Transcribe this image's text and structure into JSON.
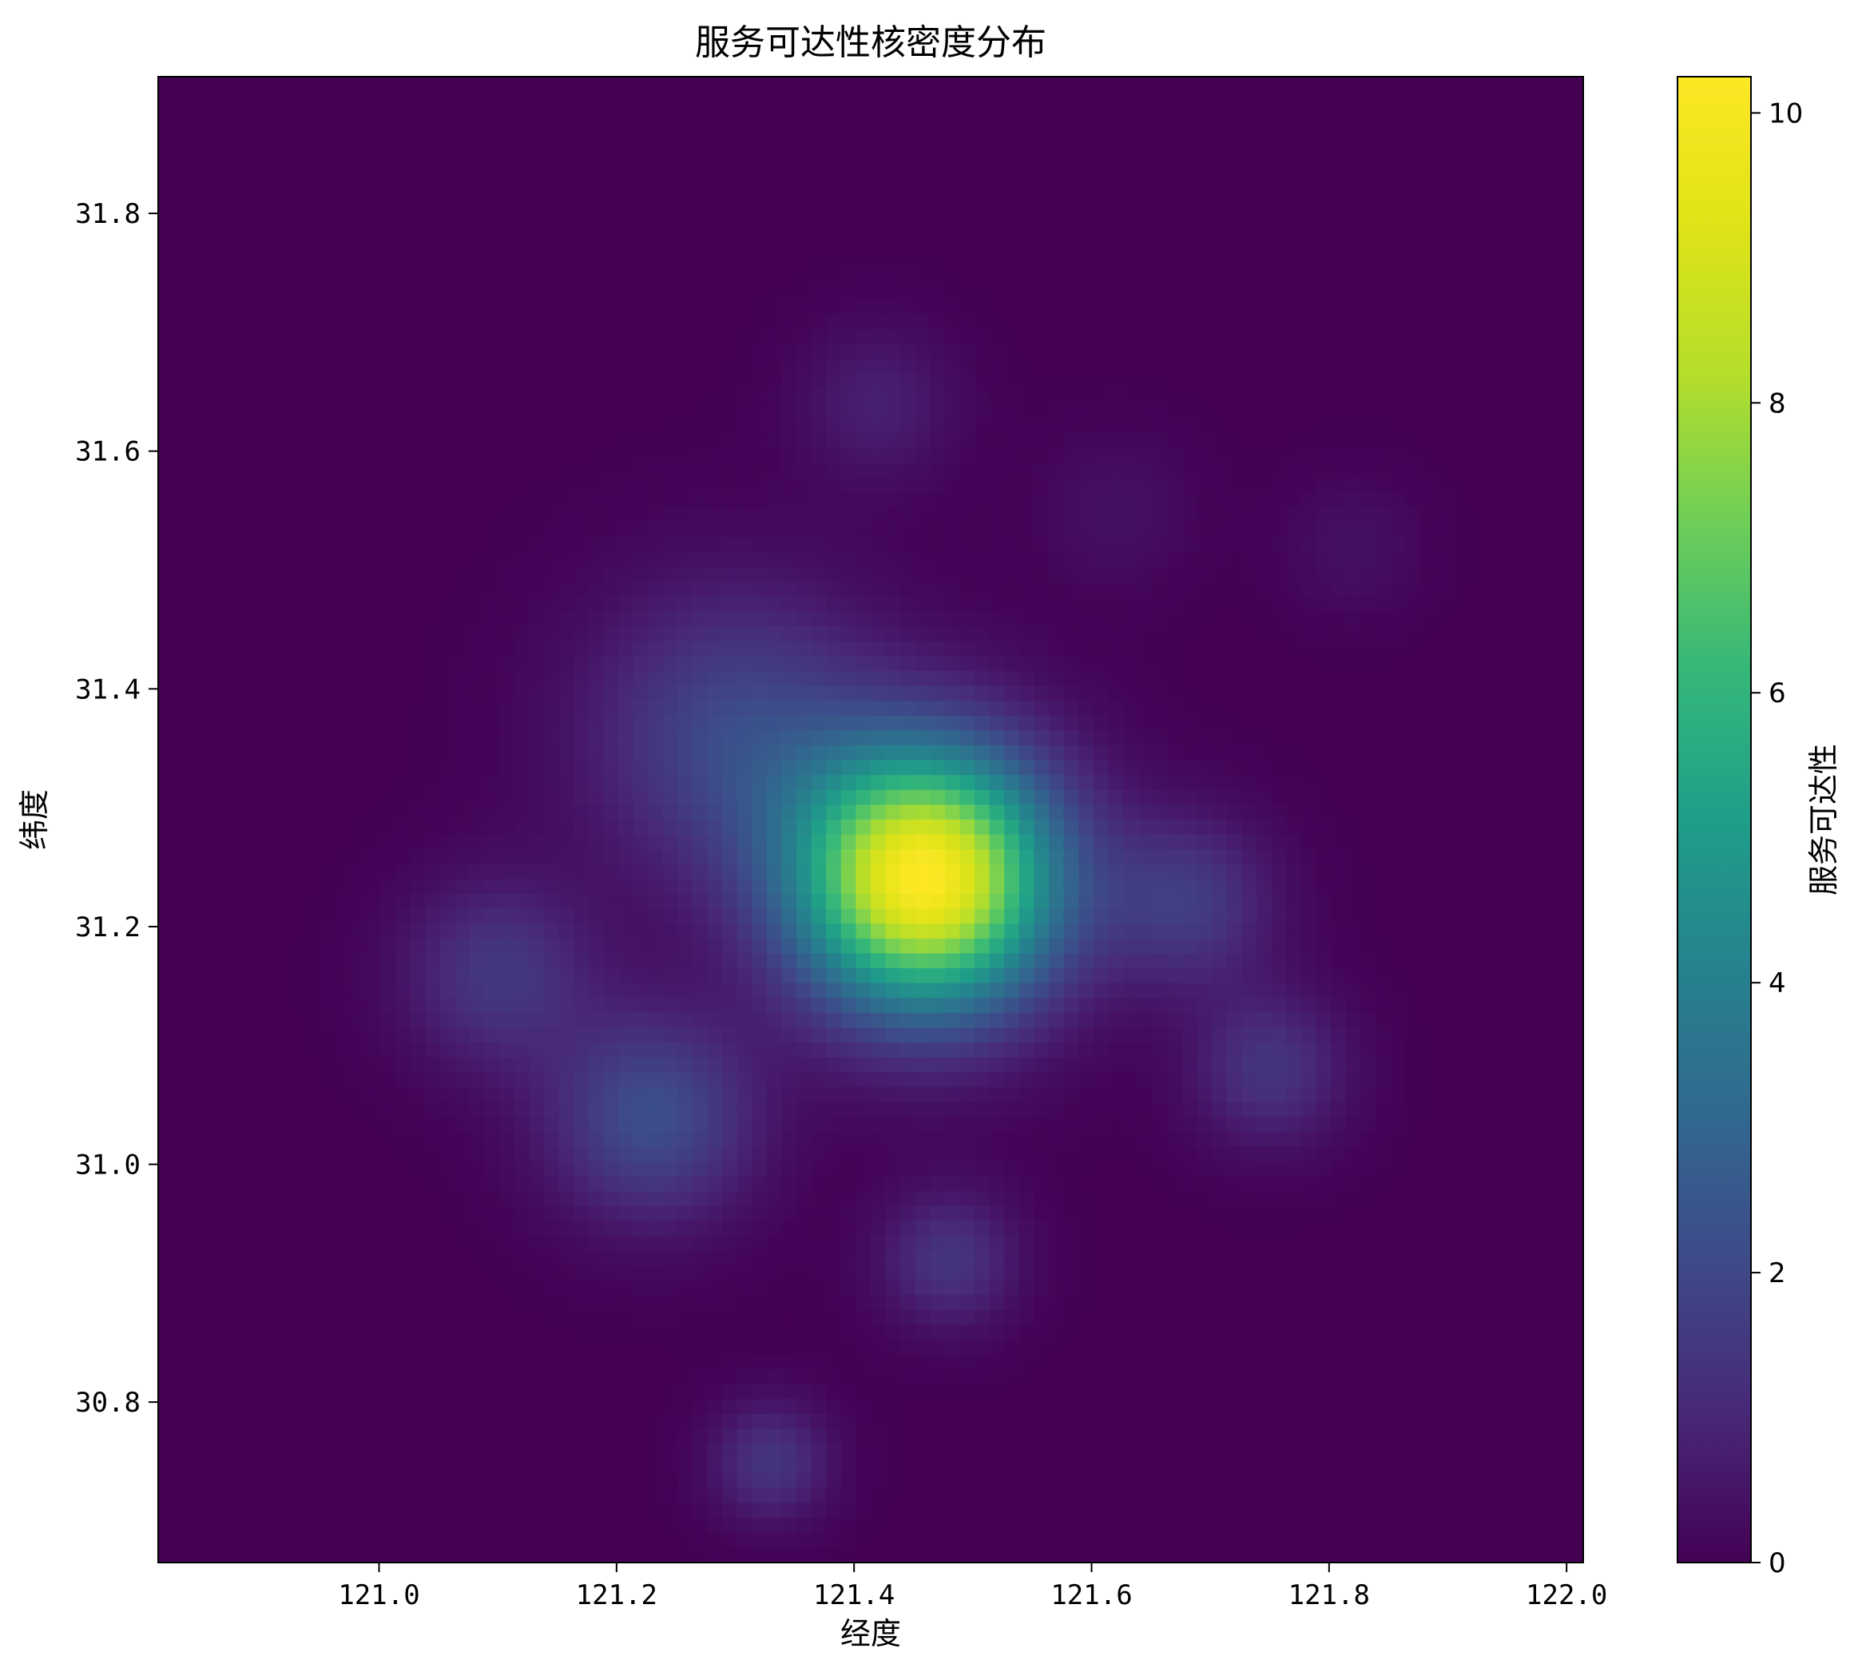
{
  "chart_data": {
    "type": "heatmap",
    "title": "服务可达性核密度分布",
    "xlabel": "经度",
    "ylabel": "纬度",
    "xlim": [
      120.814,
      122.014
    ],
    "ylim": [
      30.665,
      31.915
    ],
    "x_ticks": [
      121.0,
      121.2,
      121.4,
      121.6,
      121.8,
      122.0
    ],
    "y_ticks": [
      30.8,
      31.0,
      31.2,
      31.4,
      31.6,
      31.8
    ],
    "colormap": "viridis",
    "colorbar": {
      "label": "服务可达性",
      "range": [
        0,
        10.25
      ],
      "ticks": [
        0,
        2,
        4,
        6,
        8,
        10
      ]
    },
    "grid": false,
    "density_peaks": [
      {
        "lon": 121.46,
        "lat": 31.24,
        "value": 10.2
      },
      {
        "lon": 121.3,
        "lat": 31.36,
        "value": 2.0
      },
      {
        "lon": 121.23,
        "lat": 31.04,
        "value": 2.2
      },
      {
        "lon": 121.1,
        "lat": 31.16,
        "value": 1.5
      },
      {
        "lon": 121.42,
        "lat": 31.64,
        "value": 0.8
      },
      {
        "lon": 121.33,
        "lat": 30.75,
        "value": 1.4
      },
      {
        "lon": 121.48,
        "lat": 30.92,
        "value": 1.4
      },
      {
        "lon": 121.75,
        "lat": 31.08,
        "value": 1.4
      },
      {
        "lon": 121.68,
        "lat": 31.22,
        "value": 1.6
      },
      {
        "lon": 121.62,
        "lat": 31.55,
        "value": 0.4
      },
      {
        "lon": 121.82,
        "lat": 31.52,
        "value": 0.4
      }
    ]
  }
}
